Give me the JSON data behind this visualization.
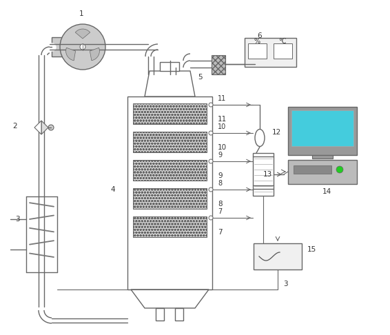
{
  "bg_color": "#ffffff",
  "lc": "#666666",
  "lc2": "#999999",
  "fill_fan": "#cccccc",
  "fill_light": "#e8e8e8",
  "fill_med": "#c8c8c8",
  "fill_bed": "#d0d0d0",
  "screen_color": "#44ccdd",
  "monitor_frame": "#999999",
  "tower_color": "#bbbbbb",
  "figsize": [
    5.66,
    4.86
  ],
  "dpi": 100
}
